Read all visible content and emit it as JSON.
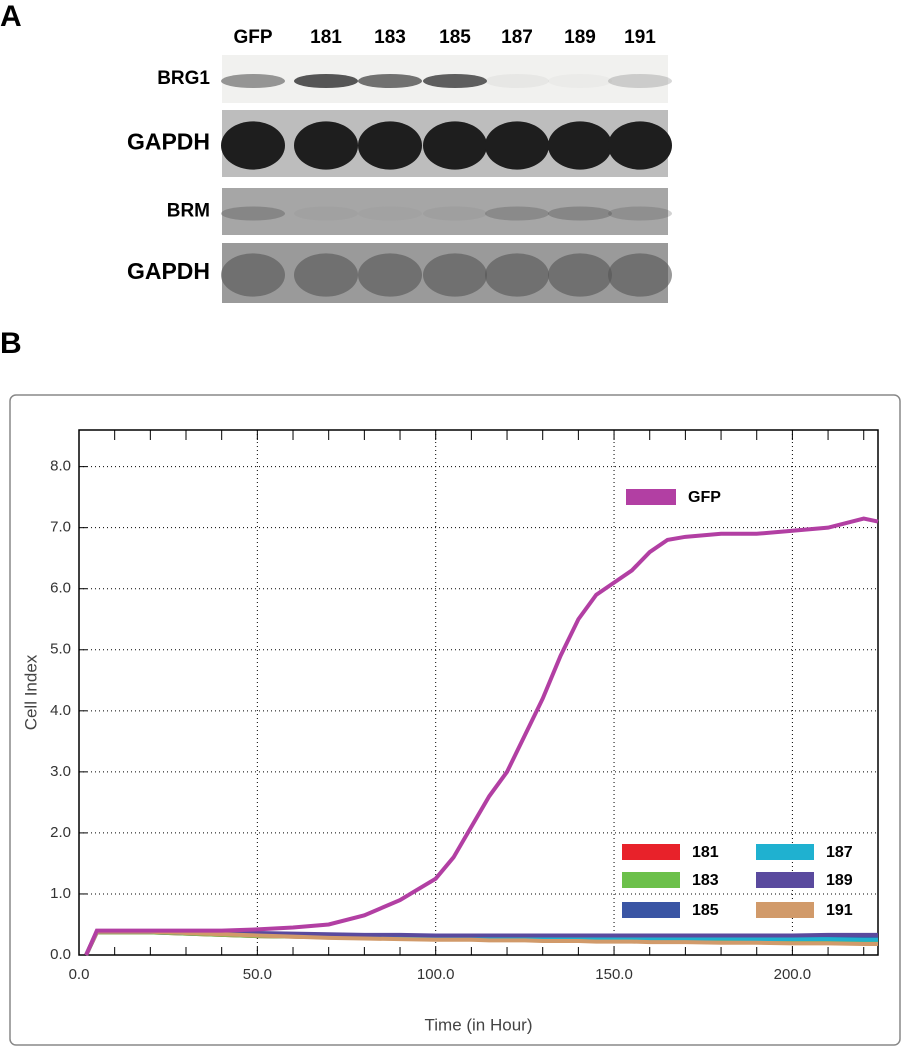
{
  "panel_labels": [
    "A",
    "B"
  ],
  "blot": {
    "lanes": [
      "GFP",
      "181",
      "183",
      "185",
      "187",
      "189",
      "191"
    ],
    "rows": [
      "BRG1",
      "GAPDH",
      "BRM",
      "GAPDH"
    ]
  },
  "chart_data": {
    "type": "line",
    "xlabel": "Time (in Hour)",
    "ylabel": "Cell Index",
    "xlim": [
      0,
      224
    ],
    "ylim": [
      0,
      8.6
    ],
    "xticks": [
      {
        "value": 0,
        "label": "0.0"
      },
      {
        "value": 50,
        "label": "50.0"
      },
      {
        "value": 100,
        "label": "100.0"
      },
      {
        "value": 150,
        "label": "150.0"
      },
      {
        "value": 200,
        "label": "200.0"
      }
    ],
    "yticks": [
      {
        "value": 0,
        "label": "0.0"
      },
      {
        "value": 1,
        "label": "1.0"
      },
      {
        "value": 2,
        "label": "2.0"
      },
      {
        "value": 3,
        "label": "3.0"
      },
      {
        "value": 4,
        "label": "4.0"
      },
      {
        "value": 5,
        "label": "5.0"
      },
      {
        "value": 6,
        "label": "6.0"
      },
      {
        "value": 7,
        "label": "7.0"
      },
      {
        "value": 8,
        "label": "8.0"
      }
    ],
    "grid": true,
    "x": [
      2,
      5,
      10,
      20,
      30,
      40,
      50,
      60,
      70,
      80,
      90,
      100,
      105,
      110,
      115,
      120,
      125,
      130,
      135,
      140,
      145,
      150,
      155,
      160,
      165,
      170,
      180,
      190,
      200,
      210,
      220,
      224
    ],
    "series": [
      {
        "name": "181",
        "color": "#e8222a",
        "values": [
          0,
          0.37,
          0.37,
          0.37,
          0.35,
          0.33,
          0.31,
          0.3,
          0.29,
          0.28,
          0.27,
          0.27,
          0.26,
          0.26,
          0.26,
          0.25,
          0.25,
          0.25,
          0.24,
          0.24,
          0.24,
          0.24,
          0.23,
          0.23,
          0.23,
          0.23,
          0.22,
          0.22,
          0.22,
          0.21,
          0.21,
          0.21
        ]
      },
      {
        "name": "183",
        "color": "#6cc04a",
        "values": [
          0,
          0.37,
          0.37,
          0.37,
          0.35,
          0.33,
          0.31,
          0.3,
          0.29,
          0.28,
          0.27,
          0.27,
          0.26,
          0.26,
          0.26,
          0.26,
          0.25,
          0.25,
          0.25,
          0.25,
          0.24,
          0.24,
          0.24,
          0.24,
          0.23,
          0.23,
          0.23,
          0.22,
          0.22,
          0.22,
          0.22,
          0.22
        ]
      },
      {
        "name": "185",
        "color": "#3a55a4",
        "values": [
          0,
          0.38,
          0.38,
          0.38,
          0.36,
          0.35,
          0.34,
          0.33,
          0.32,
          0.31,
          0.31,
          0.3,
          0.3,
          0.3,
          0.3,
          0.3,
          0.3,
          0.3,
          0.29,
          0.29,
          0.29,
          0.29,
          0.29,
          0.29,
          0.28,
          0.28,
          0.28,
          0.28,
          0.28,
          0.28,
          0.28,
          0.28
        ]
      },
      {
        "name": "187",
        "color": "#1fb1d0",
        "values": [
          0,
          0.38,
          0.38,
          0.38,
          0.36,
          0.35,
          0.34,
          0.33,
          0.32,
          0.31,
          0.3,
          0.3,
          0.3,
          0.29,
          0.29,
          0.29,
          0.29,
          0.29,
          0.28,
          0.28,
          0.28,
          0.28,
          0.28,
          0.27,
          0.27,
          0.27,
          0.27,
          0.26,
          0.26,
          0.26,
          0.25,
          0.25
        ]
      },
      {
        "name": "189",
        "color": "#5a4a9e",
        "values": [
          0,
          0.38,
          0.38,
          0.38,
          0.37,
          0.37,
          0.36,
          0.35,
          0.34,
          0.33,
          0.33,
          0.32,
          0.32,
          0.32,
          0.32,
          0.32,
          0.32,
          0.32,
          0.32,
          0.32,
          0.32,
          0.32,
          0.32,
          0.32,
          0.32,
          0.32,
          0.32,
          0.32,
          0.32,
          0.33,
          0.33,
          0.33
        ]
      },
      {
        "name": "191",
        "color": "#d19a6a",
        "values": [
          0,
          0.38,
          0.38,
          0.38,
          0.36,
          0.34,
          0.32,
          0.3,
          0.28,
          0.27,
          0.26,
          0.25,
          0.25,
          0.25,
          0.24,
          0.24,
          0.24,
          0.23,
          0.23,
          0.23,
          0.22,
          0.22,
          0.22,
          0.21,
          0.21,
          0.21,
          0.2,
          0.2,
          0.19,
          0.19,
          0.18,
          0.18
        ]
      },
      {
        "name": "GFP",
        "color": "#b23fa3",
        "values": [
          0,
          0.4,
          0.4,
          0.4,
          0.4,
          0.4,
          0.42,
          0.45,
          0.5,
          0.65,
          0.9,
          1.25,
          1.6,
          2.1,
          2.6,
          3.0,
          3.6,
          4.2,
          4.9,
          5.5,
          5.9,
          6.1,
          6.3,
          6.6,
          6.8,
          6.85,
          6.9,
          6.9,
          6.95,
          7.0,
          7.15,
          7.1
        ]
      }
    ]
  }
}
